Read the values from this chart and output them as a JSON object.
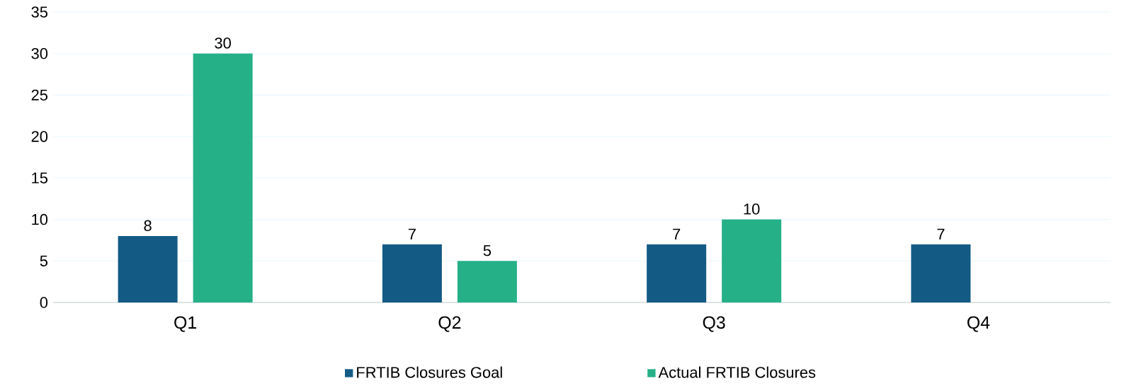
{
  "chart_data": {
    "type": "bar",
    "categories": [
      "Q1",
      "Q2",
      "Q3",
      "Q4"
    ],
    "series": [
      {
        "name": "FRTIB Closures Goal",
        "color": "#135a85",
        "values": [
          8,
          7,
          7,
          7
        ]
      },
      {
        "name": "Actual FRTIB Closures",
        "color": "#25b088",
        "values": [
          30,
          5,
          10,
          null
        ]
      }
    ],
    "ylim": [
      0,
      35
    ],
    "yticks": [
      0,
      5,
      10,
      15,
      20,
      25,
      30,
      35
    ],
    "grid": "y",
    "legend": "bottom",
    "data_labels": true
  }
}
